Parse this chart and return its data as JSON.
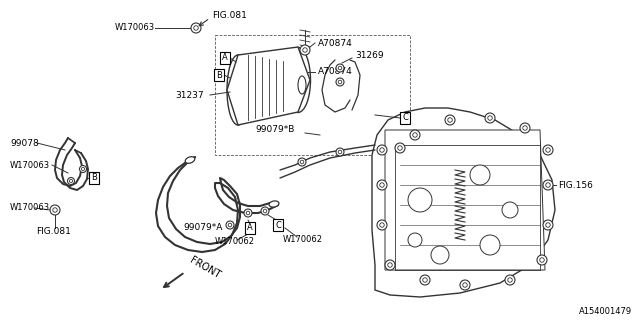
{
  "bg_color": "#ffffff",
  "fig_id": "A154001479",
  "line_color": "#333333",
  "text_color": "#000000",
  "labels": {
    "fig081_top": "FIG.081",
    "w170063_top": "W170063",
    "a70874_top": "A70874",
    "a70874_mid": "A70874",
    "31237": "31237",
    "31269": "31269",
    "99079b": "99079*B",
    "99078": "99078",
    "w170063_left": "W170063",
    "w170063_left2": "W170063",
    "fig081_bot": "FIG.081",
    "99079a": "99079*A",
    "w170062_a": "W170062",
    "w170062_b": "W170062",
    "fig156": "FIG.156",
    "front": "FRONT"
  }
}
